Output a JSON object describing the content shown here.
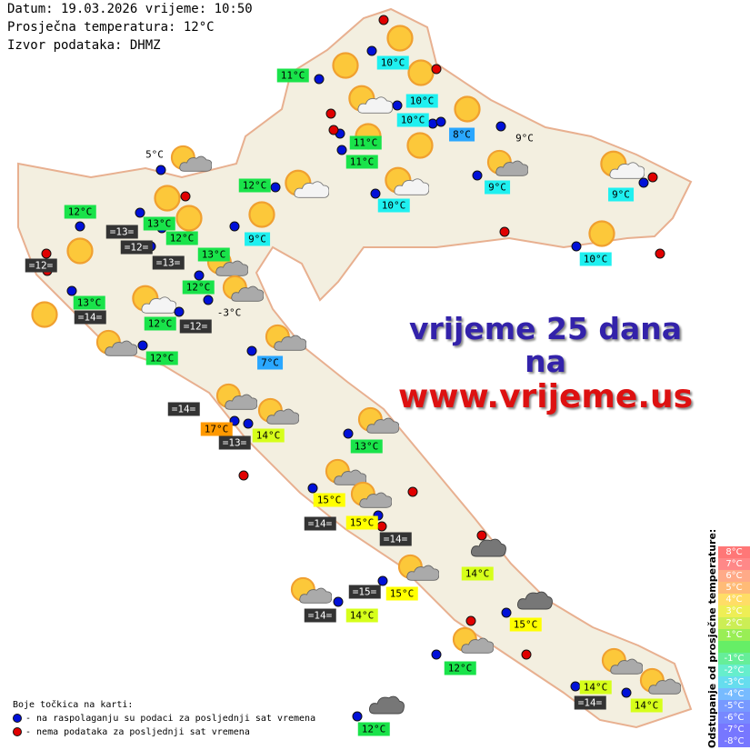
{
  "header": {
    "date_line": "Datum: 19.03.2026 vrijeme: 10:50",
    "avg_temp_line": "Prosječna temperatura: 12°C",
    "source_line": "Izvor podataka: DHMZ"
  },
  "ad": {
    "line1": "vrijeme 25 dana",
    "line2": "na",
    "line3": "www.vrijeme.us",
    "color1": "#3322aa",
    "color2": "#dd1111"
  },
  "colors": {
    "green": "#19e34a",
    "cyan": "#1ff0f0",
    "blue": "#2aa7ff",
    "yellow": "#ffff00",
    "yellow_green": "#d6ff1a",
    "orange": "#ff9900",
    "dark": "#333333",
    "dot_blue": "#0010d8",
    "dot_red": "#e00000"
  },
  "labels": [
    "11°C",
    "10°C",
    "10°C",
    "10°C",
    "8°C",
    "9°C",
    "11°C",
    "11°C",
    "12°C",
    "10°C",
    "9°C",
    "9°C",
    "5°C",
    "12°C",
    "13°C",
    "=13=",
    "=12=",
    "12°C",
    "=13=",
    "13°C",
    "9°C",
    "=12=",
    "10°C",
    "12°C",
    "13°C",
    "=14=",
    "-3°C",
    "12°C",
    "=12=",
    "12°C",
    "7°C",
    "=14=",
    "17°C",
    "14°C",
    "=13=",
    "13°C",
    "15°C",
    "=14=",
    "15°C",
    "=14=",
    "14°C",
    "=15=",
    "15°C",
    "=14=",
    "14°C",
    "15°C",
    "12°C",
    "14°C",
    "=14=",
    "14°C",
    "12°C"
  ],
  "icons": {
    "sun": "sun-icon",
    "partly": "sun-behind-cloud-icon",
    "cloud": "dark-cloud-icon"
  },
  "legend": {
    "title": "Boje točkica na karti:",
    "blue": "- na raspolaganju su podaci za posljednji sat vremena",
    "red": "- nema podataka za posljednji sat vremena"
  },
  "scale": {
    "title": "Odstupanje od prosječne temperature:",
    "steps": [
      "8°C",
      "7°C",
      "6°C",
      "5°C",
      "4°C",
      "3°C",
      "2°C",
      "1°C",
      "",
      "-1°C",
      "-2°C",
      "-3°C",
      "-4°C",
      "-5°C",
      "-6°C",
      "-7°C",
      "-8°C"
    ],
    "colors": [
      "#f77",
      "#f88",
      "#fa8",
      "#fb7",
      "#fd6",
      "#ee5",
      "#ce5",
      "#9e5",
      "#6e6",
      "#6e9",
      "#6ec",
      "#6de",
      "#7bf",
      "#79f",
      "#78f",
      "#77f",
      "#77f"
    ]
  }
}
